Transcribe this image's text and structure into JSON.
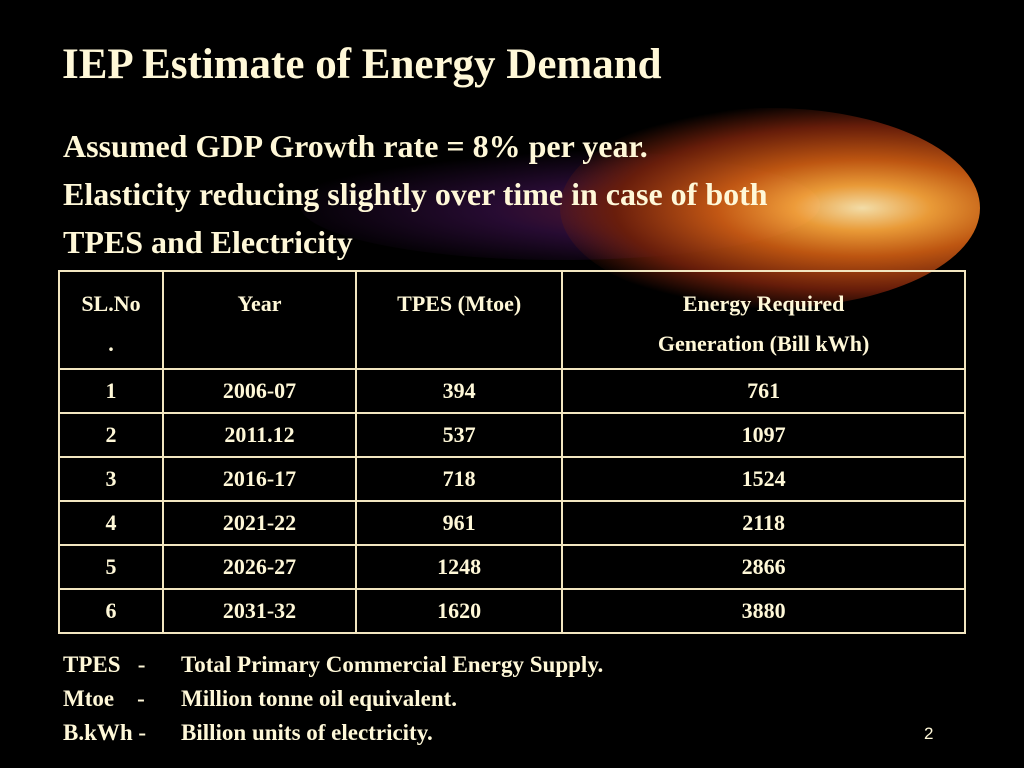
{
  "slide": {
    "title": "IEP Estimate of Energy Demand",
    "subtitle_lines": [
      "Assumed GDP Growth rate = 8% per year.",
      "Elasticity reducing slightly over time in case of both",
      "TPES and Electricity"
    ],
    "page_number": "2"
  },
  "table": {
    "headers": [
      [
        "SL.No",
        "."
      ],
      [
        "Year"
      ],
      [
        "TPES (Mtoe)"
      ],
      [
        "Energy Required",
        "Generation (Bill kWh)"
      ]
    ],
    "rows": [
      [
        "1",
        "2006-07",
        "394",
        "761"
      ],
      [
        "2",
        "2011.12",
        "537",
        "1097"
      ],
      [
        "3",
        "2016-17",
        "718",
        "1524"
      ],
      [
        "4",
        "2021-22",
        "961",
        "2118"
      ],
      [
        "5",
        "2026-27",
        "1248",
        "2866"
      ],
      [
        "6",
        "2031-32",
        "1620",
        "3880"
      ]
    ]
  },
  "legend": [
    {
      "term": "TPES   -",
      "definition": "Total Primary Commercial Energy Supply."
    },
    {
      "term": "Mtoe    -",
      "definition": "Million tonne oil equivalent."
    },
    {
      "term": "B.kWh -",
      "definition": "Billion units of electricity."
    }
  ],
  "colors": {
    "background": "#000000",
    "text": "#fff8d8",
    "table_border": "#f2e6c0",
    "glow": "#f5a23a"
  }
}
